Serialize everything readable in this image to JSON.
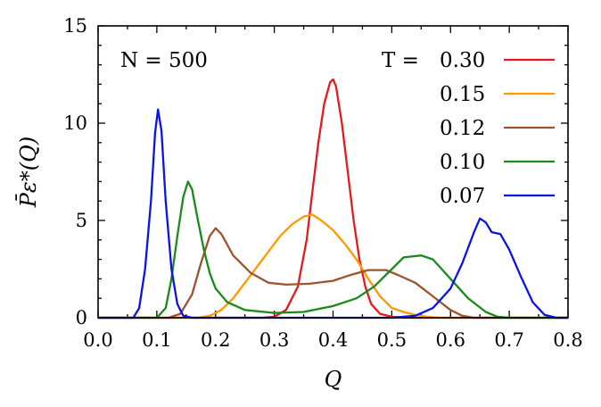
{
  "chart_data": {
    "type": "line",
    "title": "",
    "xlabel": "Q",
    "ylabel": "P̄ε*(Q)",
    "xlim": [
      0.0,
      0.8
    ],
    "ylim": [
      0,
      15
    ],
    "x_ticks": [
      "0.0",
      "0.1",
      "0.2",
      "0.3",
      "0.4",
      "0.5",
      "0.6",
      "0.7",
      "0.8"
    ],
    "y_ticks": [
      "0",
      "5",
      "10",
      "15"
    ],
    "annotation": "N = 500",
    "legend_title": "T =",
    "legend_position": "top-right",
    "series": [
      {
        "name": "0.30",
        "color": "#e41a1c",
        "points": [
          [
            0.0,
            0
          ],
          [
            0.28,
            0
          ],
          [
            0.3,
            0.05
          ],
          [
            0.32,
            0.4
          ],
          [
            0.34,
            1.6
          ],
          [
            0.355,
            4.0
          ],
          [
            0.365,
            6.5
          ],
          [
            0.375,
            9.0
          ],
          [
            0.385,
            11.0
          ],
          [
            0.395,
            12.1
          ],
          [
            0.4,
            12.25
          ],
          [
            0.405,
            11.9
          ],
          [
            0.415,
            10.0
          ],
          [
            0.425,
            7.5
          ],
          [
            0.435,
            5.0
          ],
          [
            0.445,
            3.0
          ],
          [
            0.455,
            1.6
          ],
          [
            0.465,
            0.7
          ],
          [
            0.48,
            0.2
          ],
          [
            0.5,
            0.05
          ],
          [
            0.52,
            0
          ],
          [
            0.8,
            0
          ]
        ]
      },
      {
        "name": "0.15",
        "color": "#ff9900",
        "points": [
          [
            0.0,
            0
          ],
          [
            0.17,
            0
          ],
          [
            0.19,
            0.1
          ],
          [
            0.21,
            0.4
          ],
          [
            0.23,
            1.0
          ],
          [
            0.25,
            1.8
          ],
          [
            0.27,
            2.6
          ],
          [
            0.29,
            3.4
          ],
          [
            0.31,
            4.2
          ],
          [
            0.33,
            4.8
          ],
          [
            0.35,
            5.2
          ],
          [
            0.365,
            5.3
          ],
          [
            0.38,
            5.0
          ],
          [
            0.4,
            4.5
          ],
          [
            0.42,
            3.8
          ],
          [
            0.44,
            3.0
          ],
          [
            0.46,
            2.0
          ],
          [
            0.48,
            1.1
          ],
          [
            0.5,
            0.5
          ],
          [
            0.52,
            0.3
          ],
          [
            0.54,
            0.15
          ],
          [
            0.56,
            0.05
          ],
          [
            0.58,
            0
          ],
          [
            0.8,
            0
          ]
        ]
      },
      {
        "name": "0.12",
        "color": "#a0522d",
        "points": [
          [
            0.0,
            0
          ],
          [
            0.12,
            0
          ],
          [
            0.14,
            0.2
          ],
          [
            0.16,
            1.2
          ],
          [
            0.175,
            2.8
          ],
          [
            0.19,
            4.2
          ],
          [
            0.2,
            4.6
          ],
          [
            0.21,
            4.3
          ],
          [
            0.23,
            3.2
          ],
          [
            0.26,
            2.3
          ],
          [
            0.29,
            1.8
          ],
          [
            0.32,
            1.7
          ],
          [
            0.36,
            1.75
          ],
          [
            0.4,
            1.9
          ],
          [
            0.43,
            2.2
          ],
          [
            0.46,
            2.45
          ],
          [
            0.49,
            2.45
          ],
          [
            0.51,
            2.2
          ],
          [
            0.54,
            1.8
          ],
          [
            0.57,
            1.1
          ],
          [
            0.6,
            0.4
          ],
          [
            0.62,
            0.1
          ],
          [
            0.64,
            0
          ],
          [
            0.8,
            0
          ]
        ]
      },
      {
        "name": "0.10",
        "color": "#1a8a1a",
        "points": [
          [
            0.0,
            0
          ],
          [
            0.1,
            0
          ],
          [
            0.115,
            0.5
          ],
          [
            0.125,
            2.0
          ],
          [
            0.135,
            4.2
          ],
          [
            0.145,
            6.2
          ],
          [
            0.153,
            7.0
          ],
          [
            0.16,
            6.6
          ],
          [
            0.17,
            5.0
          ],
          [
            0.18,
            3.5
          ],
          [
            0.19,
            2.3
          ],
          [
            0.2,
            1.5
          ],
          [
            0.22,
            0.8
          ],
          [
            0.25,
            0.4
          ],
          [
            0.3,
            0.25
          ],
          [
            0.35,
            0.3
          ],
          [
            0.4,
            0.6
          ],
          [
            0.44,
            1.0
          ],
          [
            0.47,
            1.6
          ],
          [
            0.5,
            2.5
          ],
          [
            0.52,
            3.1
          ],
          [
            0.55,
            3.2
          ],
          [
            0.57,
            3.0
          ],
          [
            0.6,
            2.0
          ],
          [
            0.63,
            1.0
          ],
          [
            0.66,
            0.3
          ],
          [
            0.68,
            0.05
          ],
          [
            0.7,
            0
          ],
          [
            0.8,
            0
          ]
        ]
      },
      {
        "name": "0.07",
        "color": "#0a14e8",
        "points": [
          [
            0.0,
            0
          ],
          [
            0.06,
            0
          ],
          [
            0.07,
            0.5
          ],
          [
            0.08,
            2.5
          ],
          [
            0.09,
            6.0
          ],
          [
            0.097,
            9.5
          ],
          [
            0.102,
            10.7
          ],
          [
            0.108,
            9.6
          ],
          [
            0.115,
            6.0
          ],
          [
            0.125,
            2.5
          ],
          [
            0.135,
            0.7
          ],
          [
            0.145,
            0.1
          ],
          [
            0.16,
            0
          ],
          [
            0.5,
            0
          ],
          [
            0.54,
            0.1
          ],
          [
            0.57,
            0.5
          ],
          [
            0.6,
            1.5
          ],
          [
            0.62,
            2.8
          ],
          [
            0.64,
            4.4
          ],
          [
            0.65,
            5.1
          ],
          [
            0.66,
            4.9
          ],
          [
            0.67,
            4.4
          ],
          [
            0.685,
            4.3
          ],
          [
            0.7,
            3.5
          ],
          [
            0.72,
            2.1
          ],
          [
            0.74,
            0.8
          ],
          [
            0.76,
            0.15
          ],
          [
            0.78,
            0
          ],
          [
            0.8,
            0
          ]
        ]
      }
    ]
  }
}
